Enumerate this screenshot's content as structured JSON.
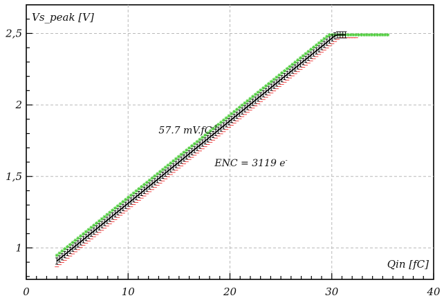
{
  "chart_data": {
    "type": "scatter",
    "ylabel": "Vs_peak [V]",
    "xlabel": "Qin [fC]",
    "xlim": [
      0,
      40
    ],
    "ylim": [
      0.78,
      2.7
    ],
    "x_ticks": [
      {
        "value": 0,
        "label": "0"
      },
      {
        "value": 10,
        "label": "10"
      },
      {
        "value": 20,
        "label": "20"
      },
      {
        "value": 30,
        "label": "30"
      },
      {
        "value": 40,
        "label": "40"
      }
    ],
    "y_ticks": [
      {
        "value": 1,
        "label": "1"
      },
      {
        "value": 1.5,
        "label": "1,5"
      },
      {
        "value": 2,
        "label": "2"
      },
      {
        "value": 2.5,
        "label": "2,5"
      }
    ],
    "grid": true,
    "annotations": [
      {
        "text": "57.7 mV.fC",
        "sup": "-1",
        "x": 13,
        "y": 1.8
      },
      {
        "text": "ENC = 3119 e",
        "sup": "-",
        "x": 18.5,
        "y": 1.57
      }
    ],
    "series": [
      {
        "key": "mean",
        "color": "#000000",
        "marker": "errorbar",
        "x_start": 3.0,
        "x_end": 31.5,
        "x_step": 0.26,
        "slope": 0.0577,
        "intercept": 0.735,
        "saturation": 2.49
      },
      {
        "key": "upper",
        "color": "#4ccc3a",
        "marker": "star",
        "x_start": 3.0,
        "x_end": 35.5,
        "x_step": 0.26,
        "slope": 0.0577,
        "intercept": 0.775,
        "saturation": 2.49
      },
      {
        "key": "lower",
        "color": "#ee4040",
        "marker": "dash",
        "x_start": 3.0,
        "x_end": 32.5,
        "x_step": 0.26,
        "slope": 0.0577,
        "intercept": 0.695,
        "saturation": 2.47
      }
    ]
  }
}
